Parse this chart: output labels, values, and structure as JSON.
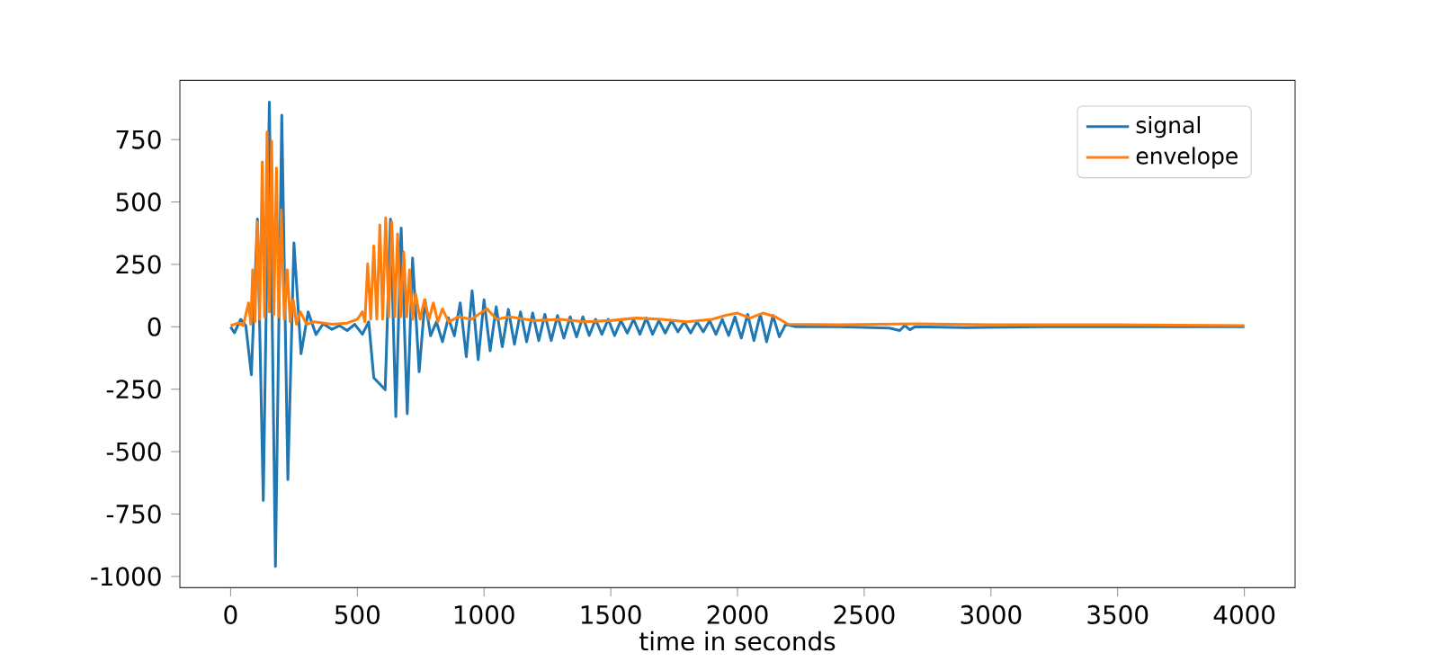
{
  "chart_data": {
    "type": "line",
    "xlabel": "time in seconds",
    "xlim": [
      -200,
      4200
    ],
    "ylim": [
      -1045,
      987
    ],
    "xticks": [
      0,
      500,
      1000,
      1500,
      2000,
      2500,
      3000,
      3500,
      4000
    ],
    "yticks": [
      -1000,
      -750,
      -500,
      -250,
      0,
      250,
      500,
      750
    ],
    "legend": "top right",
    "series": [
      {
        "name": "signal",
        "color": "#1f77b4",
        "x": [
          0,
          15,
          40,
          60,
          82,
          106,
          129,
          153,
          177,
          202,
          226,
          250,
          278,
          306,
          337,
          365,
          400,
          430,
          460,
          490,
          520,
          545,
          565,
          589,
          610,
          631,
          652,
          673,
          697,
          718,
          744,
          767,
          789,
          812,
          836,
          859,
          883,
          906,
          930,
          953,
          977,
          1000,
          1024,
          1048,
          1072,
          1096,
          1120,
          1144,
          1168,
          1192,
          1216,
          1240,
          1265,
          1290,
          1315,
          1340,
          1365,
          1390,
          1415,
          1440,
          1465,
          1490,
          1515,
          1540,
          1565,
          1590,
          1615,
          1640,
          1665,
          1690,
          1715,
          1740,
          1765,
          1790,
          1815,
          1840,
          1865,
          1890,
          1915,
          1940,
          1965,
          1990,
          2015,
          2040,
          2065,
          2090,
          2115,
          2140,
          2165,
          2190,
          2230,
          2400,
          2600,
          2640,
          2660,
          2680,
          2700,
          2900,
          3200,
          3600,
          4000
        ],
        "values": [
          0,
          -24,
          30,
          5,
          -192,
          432,
          -696,
          900,
          -960,
          848,
          -612,
          336,
          -108,
          60,
          -31,
          12,
          -10,
          5,
          -15,
          10,
          -30,
          20,
          -204,
          null,
          -252,
          432,
          -360,
          396,
          -348,
          276,
          -180,
          108,
          -36,
          20,
          -60,
          36,
          -36,
          96,
          -120,
          144,
          -132,
          108,
          -96,
          80,
          -80,
          70,
          -70,
          60,
          -60,
          55,
          -55,
          50,
          -55,
          45,
          -45,
          40,
          -40,
          40,
          -35,
          30,
          -30,
          30,
          -35,
          25,
          -25,
          30,
          -30,
          35,
          -30,
          25,
          -25,
          25,
          -20,
          20,
          -25,
          20,
          -20,
          25,
          -30,
          30,
          -35,
          40,
          -45,
          50,
          -55,
          50,
          -60,
          45,
          -40,
          10,
          0,
          0,
          -5,
          -15,
          5,
          -12,
          0,
          -3,
          0,
          0,
          0
        ]
      },
      {
        "name": "envelope",
        "color": "#ff7f0e",
        "x": [
          0,
          30,
          50,
          71,
          80,
          87,
          96,
          106,
          115,
          125,
          134,
          144,
          153,
          162,
          171,
          181,
          190,
          200,
          212,
          224,
          235,
          247,
          260,
          275,
          300,
          330,
          400,
          460,
          500,
          520,
          530,
          541,
          553,
          565,
          577,
          589,
          600,
          612,
          624,
          636,
          648,
          659,
          671,
          683,
          695,
          706,
          718,
          730,
          748,
          765,
          783,
          800,
          818,
          836,
          860,
          900,
          950,
          1012,
          1050,
          1100,
          1200,
          1300,
          1400,
          1500,
          1600,
          1700,
          1800,
          1900,
          1950,
          2000,
          2050,
          2100,
          2150,
          2200,
          2400,
          2700,
          3000,
          3500,
          4000
        ],
        "values": [
          5,
          15,
          5,
          96,
          10,
          228,
          20,
          420,
          30,
          660,
          40,
          780,
          60,
          744,
          50,
          636,
          40,
          468,
          30,
          228,
          20,
          108,
          10,
          60,
          10,
          20,
          10,
          15,
          30,
          60,
          20,
          252,
          30,
          324,
          30,
          408,
          30,
          437,
          40,
          420,
          40,
          372,
          40,
          300,
          40,
          228,
          30,
          132,
          30,
          108,
          30,
          96,
          20,
          72,
          20,
          40,
          30,
          72,
          30,
          40,
          25,
          30,
          20,
          25,
          35,
          30,
          20,
          30,
          45,
          55,
          35,
          55,
          40,
          10,
          8,
          12,
          8,
          8,
          5
        ]
      }
    ]
  }
}
